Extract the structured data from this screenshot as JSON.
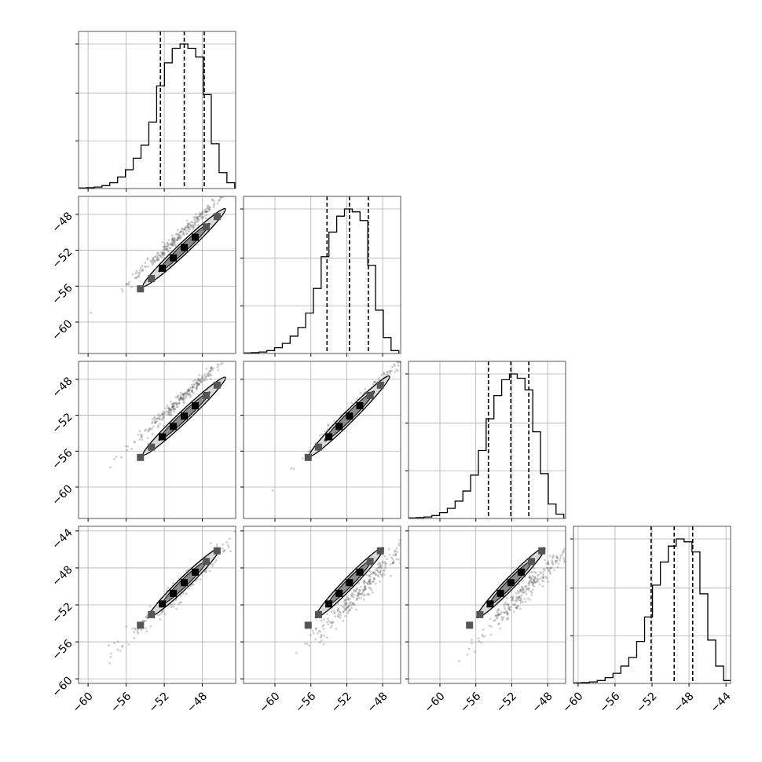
{
  "figure": {
    "type": "corner-plot",
    "n_params": 4,
    "quantile_style": "dashed black vertical lines",
    "grid": true
  },
  "chart_data": {
    "type": "corner",
    "grid": true,
    "axis_ranges": [
      [
        -61,
        -44.5
      ],
      [
        -63.5,
        -46
      ],
      [
        -63.5,
        -46
      ],
      [
        -60.5,
        -43.5
      ]
    ],
    "quantiles": [
      [
        -52.4,
        -49.9,
        -47.8
      ],
      [
        -54.2,
        -51.7,
        -49.6
      ],
      [
        -54.6,
        -52.1,
        -50.1
      ],
      [
        -52.1,
        -49.6,
        -47.6
      ]
    ],
    "histograms": [
      {
        "bin_width": 0.8,
        "xrange": [
          -61,
          -44.6
        ],
        "counts": [
          0.004,
          0.006,
          0.01,
          0.02,
          0.04,
          0.08,
          0.13,
          0.21,
          0.3,
          0.46,
          0.71,
          0.87,
          0.97,
          1.0,
          0.97,
          0.91,
          0.65,
          0.31,
          0.11,
          0.04
        ]
      },
      {
        "bin_width": 0.85,
        "xrange": [
          -63.5,
          -46.2
        ],
        "counts": [
          0.004,
          0.006,
          0.01,
          0.02,
          0.04,
          0.07,
          0.12,
          0.18,
          0.28,
          0.45,
          0.67,
          0.84,
          0.95,
          1.0,
          0.98,
          0.92,
          0.61,
          0.3,
          0.11,
          0.02
        ]
      },
      {
        "bin_width": 0.85,
        "xrange": [
          -63.5,
          -46.2
        ],
        "counts": [
          0.004,
          0.006,
          0.01,
          0.02,
          0.04,
          0.07,
          0.12,
          0.19,
          0.3,
          0.47,
          0.69,
          0.85,
          0.96,
          1.0,
          0.97,
          0.89,
          0.6,
          0.31,
          0.1,
          0.03
        ]
      },
      {
        "bin_width": 0.82,
        "xrange": [
          -60.5,
          -43.4
        ],
        "counts": [
          0.004,
          0.006,
          0.01,
          0.02,
          0.04,
          0.07,
          0.12,
          0.18,
          0.29,
          0.46,
          0.68,
          0.84,
          0.95,
          1.0,
          0.98,
          0.91,
          0.62,
          0.3,
          0.12,
          0.02
        ]
      }
    ],
    "scatter": [
      {
        "row": 1,
        "col": 0,
        "relation": "y ≈ x",
        "slope": 1.0,
        "offset": 0.0,
        "x_range": [
          -60,
          -46
        ]
      },
      {
        "row": 2,
        "col": 0,
        "relation": "y ≈ x",
        "slope": 1.0,
        "offset": 0.0,
        "x_range": [
          -60,
          -46
        ]
      },
      {
        "row": 2,
        "col": 1,
        "relation": "y ≈ x",
        "slope": 1.0,
        "offset": 0.0,
        "x_range": [
          -62,
          -46
        ]
      },
      {
        "row": 3,
        "col": 0,
        "relation": "y ≈ x",
        "slope": 1.0,
        "offset": 0.0,
        "x_range": [
          -60,
          -45
        ]
      },
      {
        "row": 3,
        "col": 1,
        "relation": "y ≈ x",
        "slope": 1.0,
        "offset": 0.0,
        "x_range": [
          -62,
          -46
        ]
      },
      {
        "row": 3,
        "col": 2,
        "relation": "y ≈ x",
        "slope": 1.0,
        "offset": 0.0,
        "x_range": [
          -62,
          -46
        ]
      }
    ]
  },
  "tick_labels": {
    "col0_x": [
      "−60",
      "−56",
      "−52",
      "−48"
    ],
    "col1_x": [
      "−60",
      "−56",
      "−52",
      "−48"
    ],
    "col2_x": [
      "−60",
      "−56",
      "−52",
      "−48"
    ],
    "col3_x": [
      "−60",
      "−56",
      "−52",
      "−48",
      "−44"
    ],
    "row1_y": [
      "−48",
      "−52",
      "−56",
      "−60"
    ],
    "row2_y": [
      "−48",
      "−52",
      "−56",
      "−60"
    ],
    "row3_y": [
      "−44",
      "−48",
      "−52",
      "−56",
      "−60"
    ]
  },
  "tick_values": {
    "col0_x": [
      -60,
      -56,
      -52,
      -48
    ],
    "col1_x": [
      -60,
      -56,
      -52,
      -48
    ],
    "col2_x": [
      -60,
      -56,
      -52,
      -48
    ],
    "col3_x": [
      -60,
      -56,
      -52,
      -48,
      -44
    ],
    "row1_y": [
      -48,
      -52,
      -56,
      -60
    ],
    "row2_y": [
      -48,
      -52,
      -56,
      -60
    ],
    "row3_y": [
      -44,
      -48,
      -52,
      -56,
      -60
    ]
  }
}
